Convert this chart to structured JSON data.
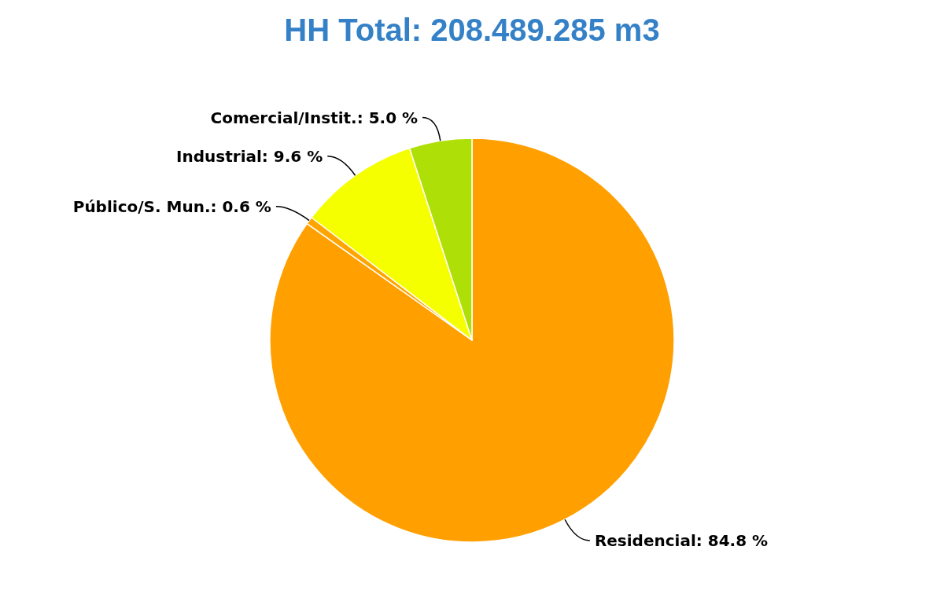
{
  "chart_data": {
    "type": "pie",
    "title": "HH Total: 208.489.285 m3",
    "categories": [
      "Residencial",
      "Público/S. Mun.",
      "Industrial",
      "Comercial/Instit."
    ],
    "values": [
      84.8,
      0.6,
      9.6,
      5.0
    ],
    "value_labels": [
      "84.8 %",
      "0.6 %",
      "9.6 %",
      "5.0 %"
    ],
    "colors": [
      "#ffa000",
      "#ffa500",
      "#f5ff00",
      "#aee007"
    ]
  }
}
